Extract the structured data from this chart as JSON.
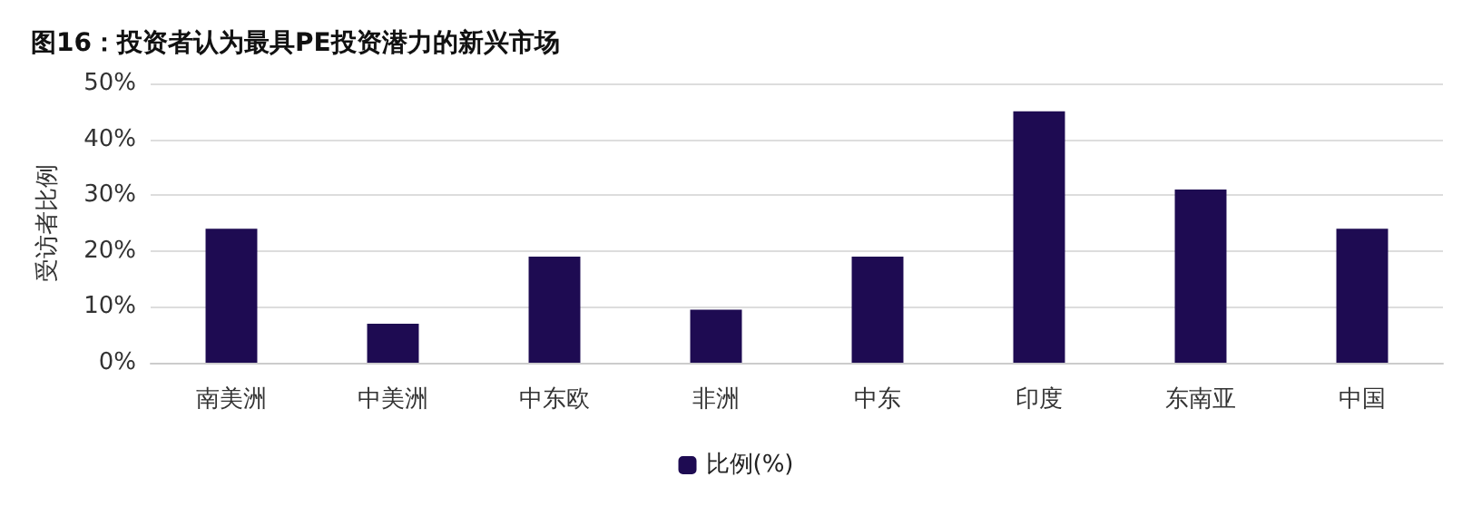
{
  "chart_data": {
    "type": "bar",
    "title": "图16：投资者认为最具PE投资潜力的新兴市场",
    "ylabel": "受访者比例",
    "categories": [
      "南美洲",
      "中美洲",
      "中东欧",
      "非洲",
      "中东",
      "印度",
      "东南亚",
      "中国"
    ],
    "series": [
      {
        "name": "比例(%)",
        "color": "#1e0b52",
        "values": [
          24,
          7,
          19,
          9.5,
          19,
          45,
          31,
          24
        ]
      }
    ],
    "ylim": [
      0,
      50
    ],
    "yticks": [
      {
        "value": 0,
        "label": "0%"
      },
      {
        "value": 10,
        "label": "10%"
      },
      {
        "value": 20,
        "label": "20%"
      },
      {
        "value": 30,
        "label": "30%"
      },
      {
        "value": 40,
        "label": "40%"
      },
      {
        "value": 50,
        "label": "50%"
      }
    ],
    "grid": "y",
    "legend": "bottom"
  }
}
